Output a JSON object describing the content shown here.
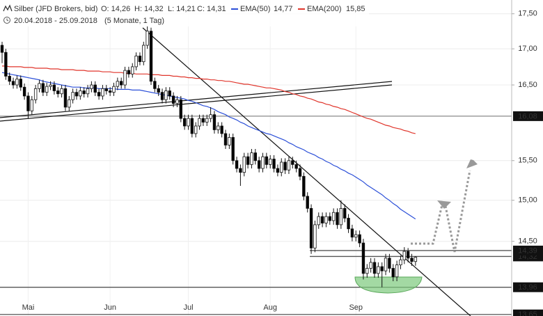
{
  "chart_data": {
    "type": "candlestick",
    "title": "Silber (JFD Brokers, bid)",
    "ohlc_labels": [
      "O: 14,26",
      "H: 14,32",
      "L: 14,21",
      "C: 14,31"
    ],
    "date_range": "20.04.2018 - 25.09.2018",
    "period": "(5 Monate, 1 Tag)",
    "log_scale": true,
    "grid": true,
    "ylim": [
      13.64,
      17.7
    ],
    "yticks": [
      {
        "value": 14.5,
        "label": "14,50"
      },
      {
        "value": 15.0,
        "label": "15,00"
      },
      {
        "value": 15.5,
        "label": "15,50"
      },
      {
        "value": 16.5,
        "label": "16,50"
      },
      {
        "value": 17.0,
        "label": "17,00"
      },
      {
        "value": 17.5,
        "label": "17,50"
      }
    ],
    "up_color": "#ffffff",
    "down_color": "#000000",
    "categories": [
      null,
      null,
      null,
      null,
      null,
      null,
      null,
      "Mai",
      null,
      null,
      null,
      null,
      null,
      null,
      null,
      null,
      null,
      null,
      null,
      null,
      null,
      null,
      null,
      null,
      null,
      null,
      null,
      null,
      null,
      "Jun",
      null,
      null,
      null,
      null,
      null,
      null,
      null,
      null,
      null,
      null,
      null,
      null,
      null,
      null,
      null,
      null,
      null,
      null,
      null,
      null,
      "Jul",
      null,
      null,
      null,
      null,
      null,
      null,
      null,
      null,
      null,
      null,
      null,
      null,
      null,
      null,
      null,
      null,
      null,
      null,
      null,
      null,
      null,
      "Aug",
      null,
      null,
      null,
      null,
      null,
      null,
      null,
      null,
      null,
      null,
      null,
      null,
      null,
      null,
      null,
      null,
      null,
      null,
      null,
      null,
      null,
      null,
      "Sep",
      null,
      null,
      null,
      null,
      null,
      null,
      null,
      null,
      null,
      null,
      null,
      null,
      null,
      null,
      null,
      null
    ],
    "ohlc": [
      [
        17.05,
        17.1,
        16.8,
        16.95
      ],
      [
        16.95,
        17.0,
        16.57,
        16.62
      ],
      [
        16.62,
        16.67,
        16.5,
        16.55
      ],
      [
        16.55,
        16.6,
        16.45,
        16.5
      ],
      [
        16.5,
        16.63,
        16.45,
        16.58
      ],
      [
        16.58,
        16.63,
        16.42,
        16.47
      ],
      [
        16.47,
        16.52,
        16.3,
        16.35
      ],
      [
        16.35,
        16.4,
        16.05,
        16.15
      ],
      [
        16.15,
        16.35,
        16.1,
        16.3
      ],
      [
        16.3,
        16.5,
        16.25,
        16.45
      ],
      [
        16.45,
        16.57,
        16.4,
        16.52
      ],
      [
        16.52,
        16.57,
        16.35,
        16.4
      ],
      [
        16.4,
        16.53,
        16.35,
        16.48
      ],
      [
        16.48,
        16.55,
        16.43,
        16.5
      ],
      [
        16.5,
        16.55,
        16.37,
        16.42
      ],
      [
        16.42,
        16.47,
        16.33,
        16.38
      ],
      [
        16.38,
        16.5,
        16.33,
        16.45
      ],
      [
        16.45,
        16.5,
        16.15,
        16.2
      ],
      [
        16.2,
        16.35,
        16.15,
        16.3
      ],
      [
        16.3,
        16.45,
        16.25,
        16.4
      ],
      [
        16.4,
        16.45,
        16.3,
        16.35
      ],
      [
        16.35,
        16.47,
        16.3,
        16.42
      ],
      [
        16.42,
        16.47,
        16.33,
        16.38
      ],
      [
        16.38,
        16.5,
        16.33,
        16.45
      ],
      [
        16.45,
        16.55,
        16.4,
        16.5
      ],
      [
        16.5,
        16.55,
        16.35,
        16.4
      ],
      [
        16.4,
        16.45,
        16.3,
        16.35
      ],
      [
        16.35,
        16.5,
        16.3,
        16.45
      ],
      [
        16.45,
        16.5,
        16.37,
        16.42
      ],
      [
        16.42,
        16.47,
        16.35,
        16.4
      ],
      [
        16.4,
        16.53,
        16.35,
        16.48
      ],
      [
        16.48,
        16.6,
        16.43,
        16.55
      ],
      [
        16.55,
        16.6,
        16.45,
        16.5
      ],
      [
        16.5,
        16.75,
        16.45,
        16.7
      ],
      [
        16.7,
        16.75,
        16.6,
        16.65
      ],
      [
        16.65,
        16.8,
        16.6,
        16.75
      ],
      [
        16.75,
        16.95,
        16.7,
        16.9
      ],
      [
        16.9,
        16.95,
        16.77,
        16.82
      ],
      [
        16.82,
        17.1,
        16.77,
        17.05
      ],
      [
        17.05,
        17.32,
        17.0,
        17.25
      ],
      [
        17.25,
        17.3,
        16.5,
        16.55
      ],
      [
        16.55,
        16.6,
        16.4,
        16.45
      ],
      [
        16.45,
        16.5,
        16.35,
        16.4
      ],
      [
        16.4,
        16.45,
        16.25,
        16.3
      ],
      [
        16.3,
        16.47,
        16.25,
        16.42
      ],
      [
        16.42,
        16.47,
        16.3,
        16.35
      ],
      [
        16.35,
        16.4,
        16.2,
        16.25
      ],
      [
        16.25,
        16.35,
        16.2,
        16.3
      ],
      [
        16.3,
        16.35,
        16.0,
        16.05
      ],
      [
        16.05,
        16.1,
        15.9,
        15.95
      ],
      [
        15.95,
        16.1,
        15.9,
        16.05
      ],
      [
        16.05,
        16.1,
        15.8,
        15.85
      ],
      [
        15.85,
        16.0,
        15.8,
        15.95
      ],
      [
        15.95,
        16.1,
        15.9,
        16.05
      ],
      [
        16.05,
        16.1,
        15.95,
        16.0
      ],
      [
        16.0,
        16.1,
        15.95,
        16.05
      ],
      [
        16.05,
        16.2,
        16.0,
        16.1
      ],
      [
        16.1,
        16.15,
        15.85,
        15.9
      ],
      [
        15.9,
        16.0,
        15.85,
        15.95
      ],
      [
        15.95,
        16.0,
        15.8,
        15.85
      ],
      [
        15.85,
        15.9,
        15.65,
        15.7
      ],
      [
        15.7,
        15.85,
        15.65,
        15.8
      ],
      [
        15.8,
        15.85,
        15.45,
        15.5
      ],
      [
        15.5,
        15.55,
        15.35,
        15.4
      ],
      [
        15.4,
        15.45,
        15.18,
        15.35
      ],
      [
        15.35,
        15.6,
        15.3,
        15.55
      ],
      [
        15.55,
        15.6,
        15.4,
        15.45
      ],
      [
        15.45,
        15.65,
        15.4,
        15.6
      ],
      [
        15.6,
        15.65,
        15.45,
        15.5
      ],
      [
        15.5,
        15.55,
        15.35,
        15.4
      ],
      [
        15.4,
        15.6,
        15.35,
        15.55
      ],
      [
        15.55,
        15.6,
        15.4,
        15.45
      ],
      [
        15.45,
        15.57,
        15.4,
        15.52
      ],
      [
        15.52,
        15.57,
        15.35,
        15.4
      ],
      [
        15.4,
        15.45,
        15.3,
        15.35
      ],
      [
        15.35,
        15.53,
        15.3,
        15.48
      ],
      [
        15.48,
        15.53,
        15.33,
        15.38
      ],
      [
        15.38,
        15.55,
        15.33,
        15.5
      ],
      [
        15.5,
        15.55,
        15.4,
        15.45
      ],
      [
        15.45,
        15.5,
        15.35,
        15.4
      ],
      [
        15.4,
        15.45,
        15.25,
        15.3
      ],
      [
        15.3,
        15.35,
        15.0,
        15.05
      ],
      [
        15.05,
        15.1,
        14.85,
        14.9
      ],
      [
        14.9,
        14.95,
        14.35,
        14.42
      ],
      [
        14.42,
        14.75,
        14.37,
        14.7
      ],
      [
        14.7,
        14.85,
        14.65,
        14.8
      ],
      [
        14.8,
        14.85,
        14.67,
        14.72
      ],
      [
        14.72,
        14.85,
        14.67,
        14.8
      ],
      [
        14.8,
        14.85,
        14.7,
        14.75
      ],
      [
        14.75,
        14.9,
        14.7,
        14.85
      ],
      [
        14.85,
        14.9,
        14.65,
        14.7
      ],
      [
        14.7,
        15.0,
        14.65,
        14.9
      ],
      [
        14.9,
        14.95,
        14.73,
        14.78
      ],
      [
        14.78,
        14.83,
        14.6,
        14.65
      ],
      [
        14.65,
        14.7,
        14.5,
        14.55
      ],
      [
        14.55,
        14.63,
        14.5,
        14.58
      ],
      [
        14.58,
        14.63,
        14.43,
        14.48
      ],
      [
        14.48,
        14.53,
        14.05,
        14.12
      ],
      [
        14.12,
        14.23,
        14.07,
        14.18
      ],
      [
        14.18,
        14.3,
        14.13,
        14.25
      ],
      [
        14.25,
        14.3,
        14.07,
        14.12
      ],
      [
        14.12,
        14.25,
        14.07,
        14.2
      ],
      [
        14.2,
        14.25,
        13.96,
        14.15
      ],
      [
        14.15,
        14.35,
        14.1,
        14.3
      ],
      [
        14.3,
        14.35,
        14.13,
        14.18
      ],
      [
        14.18,
        14.23,
        14.03,
        14.08
      ],
      [
        14.08,
        14.27,
        14.03,
        14.22
      ],
      [
        14.22,
        14.33,
        14.17,
        14.28
      ],
      [
        14.28,
        14.43,
        14.23,
        14.38
      ],
      [
        14.38,
        14.42,
        14.25,
        14.3
      ],
      [
        14.3,
        14.35,
        14.21,
        14.26
      ],
      [
        14.26,
        14.32,
        14.21,
        14.31
      ]
    ],
    "series": [
      {
        "name": "EMA(50)",
        "color": "#2b4fd8",
        "last_value_label": "14,77",
        "values": [
          16.67,
          16.66,
          16.65,
          16.64,
          16.63,
          16.62,
          16.61,
          16.6,
          16.59,
          16.58,
          16.57,
          16.55,
          16.54,
          16.53,
          16.52,
          16.51,
          16.5,
          16.49,
          16.48,
          16.47,
          16.47,
          16.47,
          16.46,
          16.46,
          16.46,
          16.46,
          16.45,
          16.45,
          16.45,
          16.45,
          16.45,
          16.44,
          16.44,
          16.44,
          16.44,
          16.43,
          16.43,
          16.43,
          16.42,
          16.41,
          16.4,
          16.39,
          16.38,
          16.37,
          16.36,
          16.35,
          16.34,
          16.33,
          16.32,
          16.31,
          16.29,
          16.28,
          16.26,
          16.24,
          16.22,
          16.21,
          16.19,
          16.17,
          16.14,
          16.12,
          16.1,
          16.07,
          16.05,
          16.03,
          16.0,
          15.98,
          15.95,
          15.93,
          15.91,
          15.89,
          15.87,
          15.85,
          15.84,
          15.82,
          15.8,
          15.78,
          15.76,
          15.73,
          15.71,
          15.68,
          15.66,
          15.64,
          15.61,
          15.59,
          15.57,
          15.54,
          15.52,
          15.49,
          15.47,
          15.44,
          15.42,
          15.39,
          15.37,
          15.34,
          15.32,
          15.29,
          15.26,
          15.23,
          15.19,
          15.16,
          15.13,
          15.1,
          15.07,
          15.03,
          15.0,
          14.96,
          14.93,
          14.89,
          14.86,
          14.83,
          14.8,
          14.77
        ]
      },
      {
        "name": "EMA(200)",
        "color": "#e0352b",
        "last_value_label": "15,85",
        "values": [
          16.76,
          16.76,
          16.75,
          16.75,
          16.75,
          16.75,
          16.74,
          16.74,
          16.74,
          16.73,
          16.73,
          16.73,
          16.73,
          16.72,
          16.72,
          16.72,
          16.71,
          16.71,
          16.71,
          16.71,
          16.7,
          16.7,
          16.7,
          16.69,
          16.69,
          16.69,
          16.69,
          16.68,
          16.68,
          16.68,
          16.67,
          16.67,
          16.67,
          16.66,
          16.66,
          16.66,
          16.65,
          16.65,
          16.65,
          16.65,
          16.64,
          16.64,
          16.64,
          16.63,
          16.63,
          16.63,
          16.62,
          16.62,
          16.61,
          16.61,
          16.6,
          16.6,
          16.59,
          16.59,
          16.58,
          16.58,
          16.57,
          16.57,
          16.56,
          16.56,
          16.55,
          16.55,
          16.54,
          16.53,
          16.52,
          16.51,
          16.51,
          16.5,
          16.49,
          16.48,
          16.47,
          16.46,
          16.46,
          16.45,
          16.44,
          16.43,
          16.41,
          16.4,
          16.38,
          16.37,
          16.35,
          16.34,
          16.32,
          16.31,
          16.29,
          16.27,
          16.26,
          16.24,
          16.23,
          16.21,
          16.2,
          16.18,
          16.17,
          16.15,
          16.13,
          16.11,
          16.09,
          16.07,
          16.05,
          16.04,
          16.02,
          16.0,
          15.98,
          15.96,
          15.95,
          15.93,
          15.92,
          15.91,
          15.89,
          15.88,
          15.86,
          15.85
        ]
      }
    ],
    "levels": [
      {
        "value": 16.08,
        "label": "16,08"
      },
      {
        "value": 14.32,
        "label": "14,32"
      },
      {
        "value": 14.39,
        "label": "14,39"
      },
      {
        "value": 13.96,
        "label": "13,96"
      },
      {
        "value": 13.65,
        "label": "13,65"
      }
    ]
  }
}
